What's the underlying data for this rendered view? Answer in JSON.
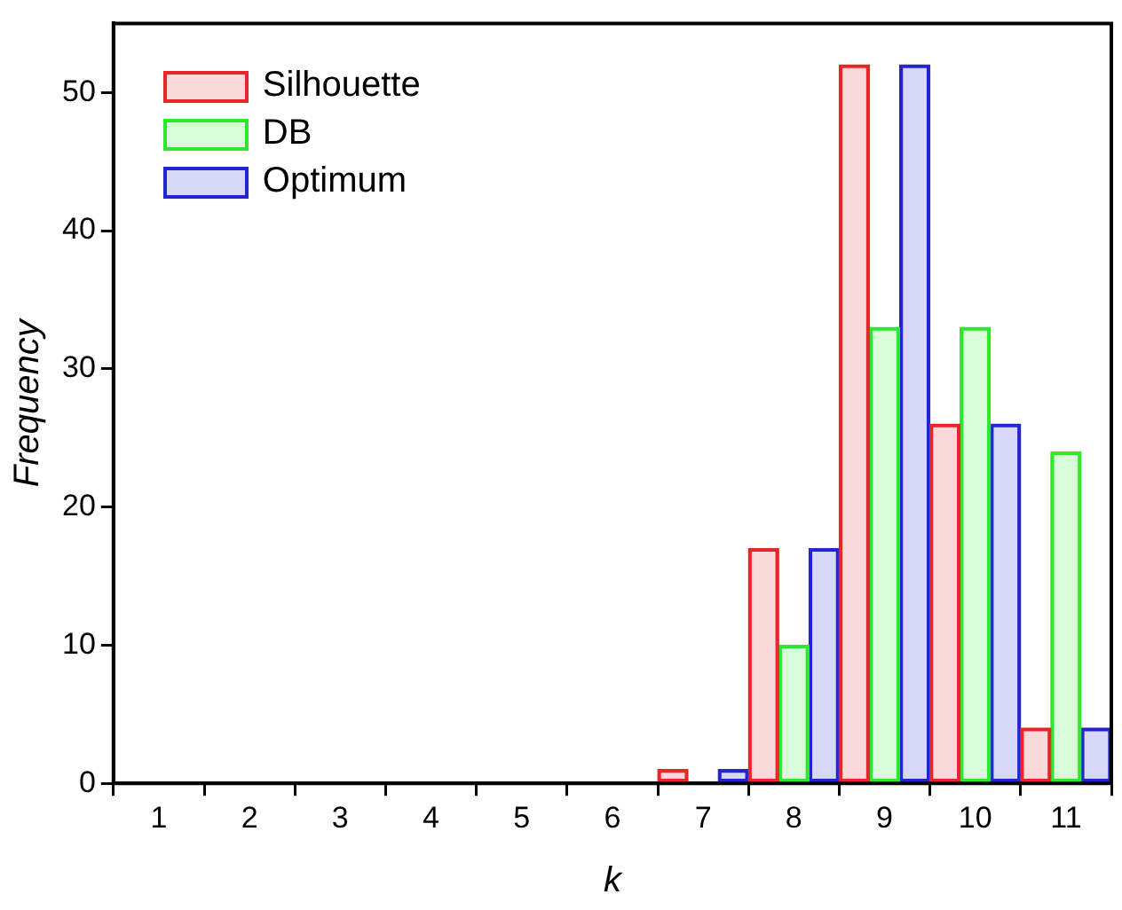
{
  "chart_data": {
    "type": "bar",
    "xlabel": "k",
    "ylabel": "Frequency",
    "categories": [
      "1",
      "2",
      "3",
      "4",
      "5",
      "6",
      "7",
      "8",
      "9",
      "10",
      "11"
    ],
    "series": [
      {
        "name": "Silhouette",
        "color": "#e8262a",
        "values": [
          0,
          0,
          0,
          0,
          0,
          0,
          1,
          17,
          52,
          26,
          4
        ]
      },
      {
        "name": "DB",
        "color": "#2ee82e",
        "values": [
          0,
          0,
          0,
          0,
          0,
          0,
          0,
          10,
          33,
          33,
          24
        ]
      },
      {
        "name": "Optimum",
        "color": "#2424d0",
        "values": [
          0,
          0,
          0,
          0,
          0,
          0,
          1,
          17,
          52,
          26,
          4
        ]
      }
    ],
    "ylim": [
      0,
      55
    ],
    "yticks": [
      0,
      10,
      20,
      30,
      40,
      50
    ],
    "grid": false,
    "legend": "top left"
  }
}
